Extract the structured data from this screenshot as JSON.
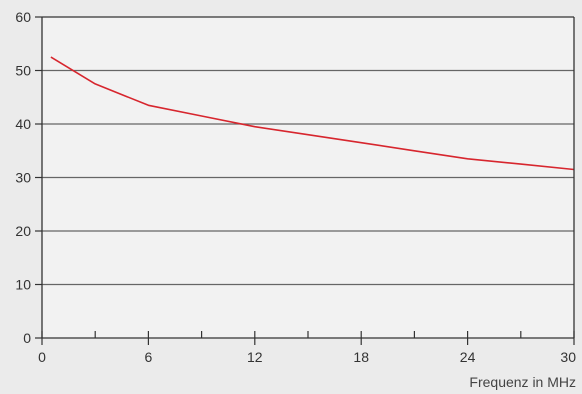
{
  "colors": {
    "background": "#ebebeb",
    "plot_background": "#f2f2f2",
    "grid": "#666666",
    "axis": "#333333",
    "series_line": "#d7262e"
  },
  "chart_data": {
    "type": "line",
    "title": "",
    "xlabel": "Frequenz in MHz",
    "ylabel": "",
    "xlim": [
      0,
      30
    ],
    "ylim": [
      0,
      60
    ],
    "x_ticks": [
      0,
      3,
      6,
      9,
      12,
      15,
      18,
      21,
      24,
      27,
      30
    ],
    "x_tick_labels": [
      {
        "value": 0,
        "label": "0"
      },
      {
        "value": 6,
        "label": "6"
      },
      {
        "value": 12,
        "label": "12"
      },
      {
        "value": 18,
        "label": "18"
      },
      {
        "value": 24,
        "label": "24"
      },
      {
        "value": 30,
        "label": "30"
      }
    ],
    "y_ticks": [
      {
        "value": 0,
        "label": "0"
      },
      {
        "value": 10,
        "label": "10"
      },
      {
        "value": 20,
        "label": "20"
      },
      {
        "value": 30,
        "label": "30"
      },
      {
        "value": 40,
        "label": "40"
      },
      {
        "value": 50,
        "label": "50"
      },
      {
        "value": 60,
        "label": "60"
      }
    ],
    "grid": "horizontal",
    "legend": "none",
    "series": [
      {
        "x": [
          0.5,
          3,
          6,
          9,
          12,
          15,
          18,
          21,
          24,
          27,
          30
        ],
        "y": [
          52.5,
          47.5,
          43.5,
          41.5,
          39.5,
          38.0,
          36.5,
          35.0,
          33.5,
          32.5,
          31.5
        ]
      }
    ]
  }
}
